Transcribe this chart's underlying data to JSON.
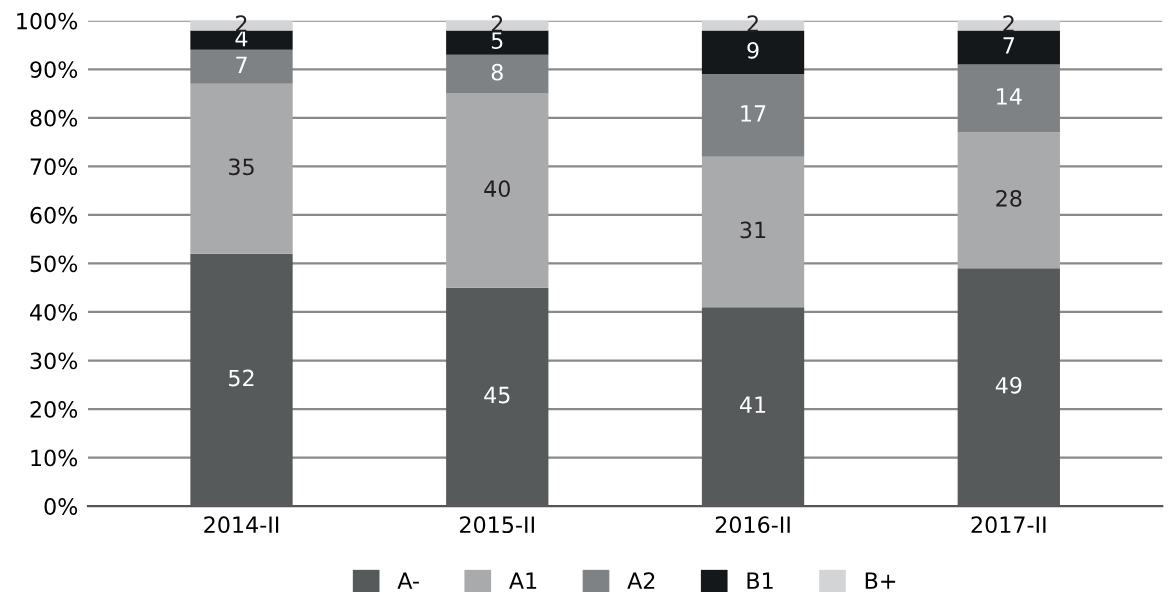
{
  "chart_data": {
    "type": "bar",
    "stacked": true,
    "categories": [
      "2014-II",
      "2015-II",
      "2016-II",
      "2017-II"
    ],
    "series": [
      {
        "name": "A-",
        "color": "#575a5b",
        "values": [
          52,
          45,
          41,
          49
        ]
      },
      {
        "name": "A1",
        "color": "#a8aaab",
        "values": [
          35,
          40,
          31,
          28
        ]
      },
      {
        "name": "A2",
        "color": "#7f8284",
        "values": [
          7,
          8,
          17,
          14
        ]
      },
      {
        "name": "B1",
        "color": "#15181a",
        "values": [
          4,
          5,
          9,
          7
        ]
      },
      {
        "name": "B+",
        "color": "#d3d4d5",
        "values": [
          2,
          2,
          2,
          2
        ]
      }
    ],
    "ylim": [
      0,
      100
    ],
    "yticks": [
      {
        "value": 0,
        "label": "0%"
      },
      {
        "value": 10,
        "label": "10%"
      },
      {
        "value": 20,
        "label": "20%"
      },
      {
        "value": 30,
        "label": "30%"
      },
      {
        "value": 40,
        "label": "40%"
      },
      {
        "value": 50,
        "label": "50%"
      },
      {
        "value": 60,
        "label": "60%"
      },
      {
        "value": 70,
        "label": "70%"
      },
      {
        "value": 80,
        "label": "80%"
      },
      {
        "value": 90,
        "label": "90%"
      },
      {
        "value": 100,
        "label": "100%"
      }
    ],
    "grid": "y",
    "legend": "bottom",
    "data_labels": true
  }
}
